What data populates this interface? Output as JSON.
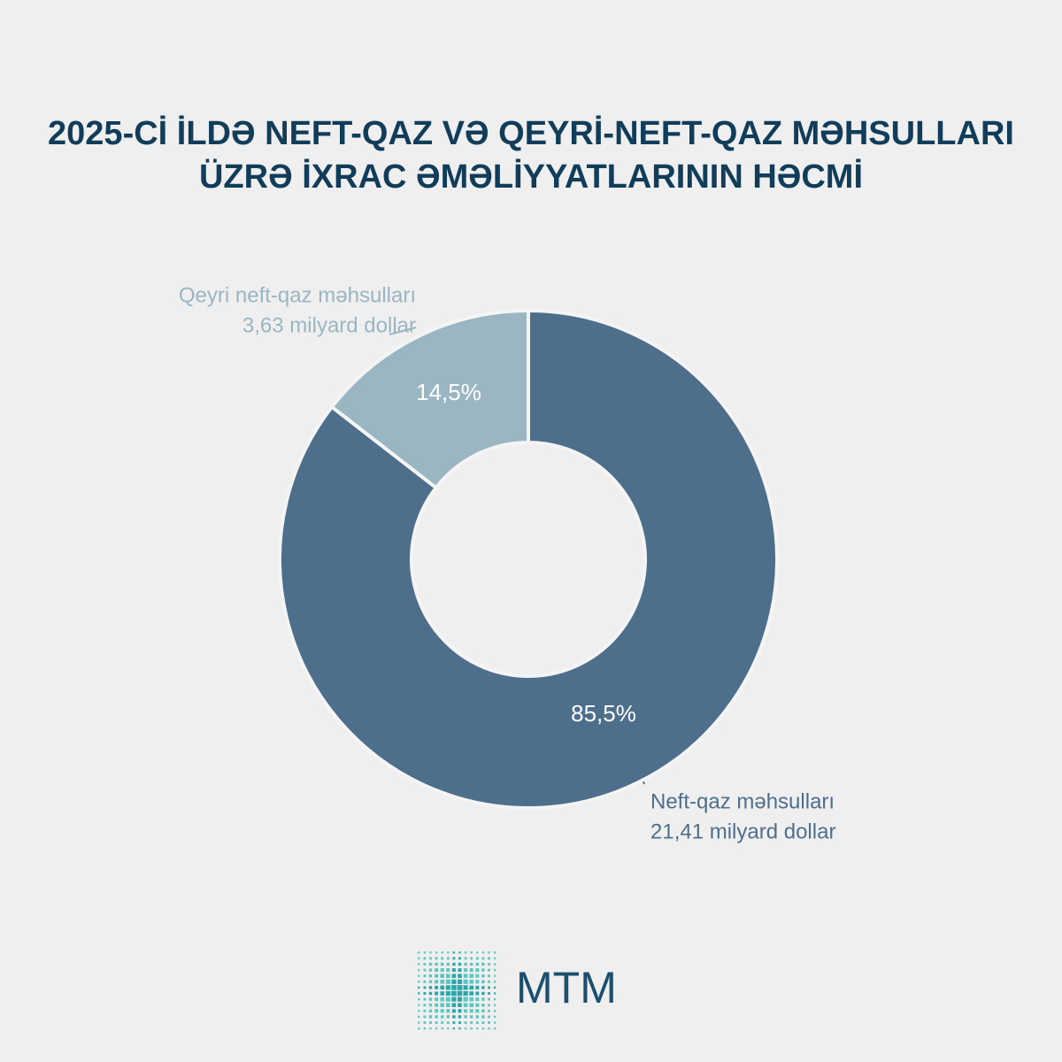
{
  "chart_data": {
    "type": "pie",
    "title": [
      "2025-Cİ İLDƏ NEFT-QAZ VƏ QEYRİ-NEFT-QAZ MƏHSULLARI",
      "ÜZRƏ İXRAC ƏMƏLİYYATLARININ HƏCMİ"
    ],
    "categories": [
      "Neft-qaz məhsulları",
      "Qeyri neft-qaz məhsulları"
    ],
    "category_notes": [
      "21,41 milyard dollar",
      "3,63 milyard dollar"
    ],
    "values": [
      85.5,
      14.5
    ],
    "value_labels": [
      "85,5%",
      "14,5%"
    ],
    "colors": [
      "#4e6f8c",
      "#9ab6c3"
    ],
    "donut": true
  },
  "logo": {
    "text": "MTM"
  }
}
